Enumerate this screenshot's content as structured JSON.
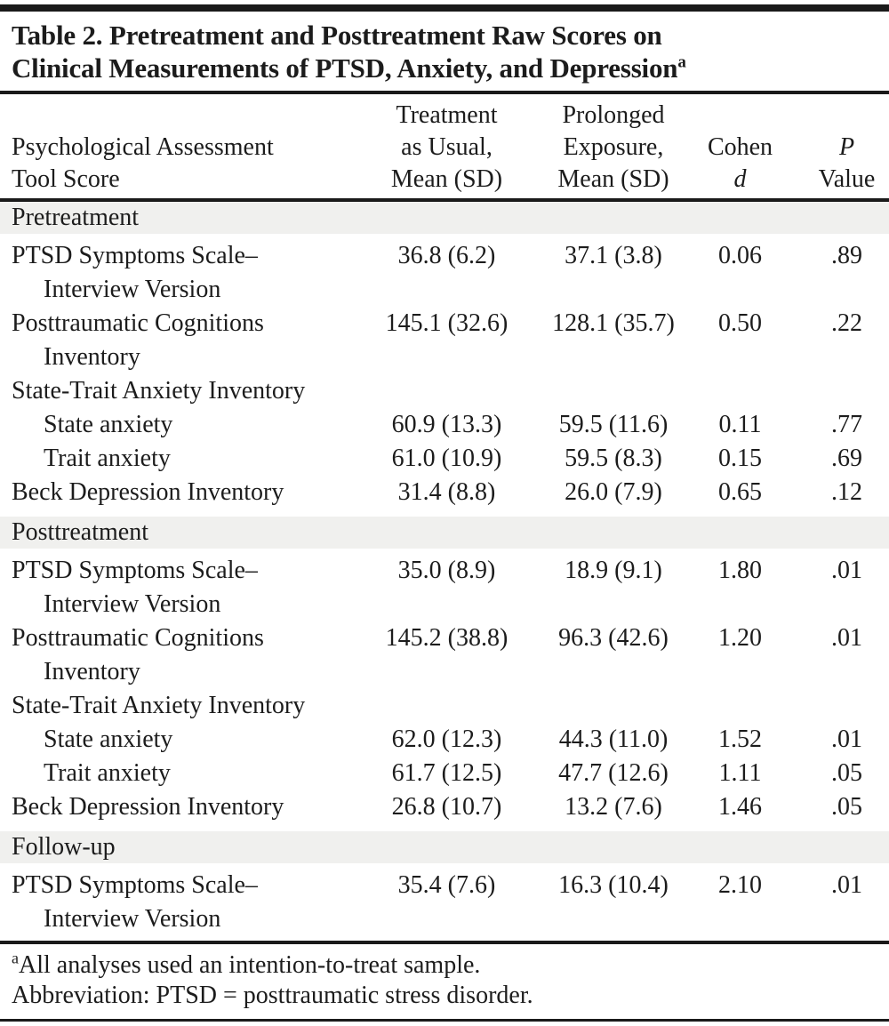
{
  "page": {
    "title_lines": [
      "Table 2. Pretreatment and Posttreatment Raw Scores on",
      "Clinical Measurements of PTSD, Anxiety, and Depression"
    ],
    "title_sup": "a"
  },
  "header": {
    "tool": [
      "Psychological Assessment",
      "Tool Score"
    ],
    "tau": [
      "Treatment",
      "as Usual,",
      "Mean (SD)"
    ],
    "pe": [
      "Prolonged",
      "Exposure,",
      "Mean (SD)"
    ],
    "cohen": [
      "Cohen",
      "d"
    ],
    "p": [
      "P",
      "Value"
    ]
  },
  "sections": [
    {
      "label": "Pretreatment",
      "rows": [
        {
          "label": "PTSD Symptoms Scale–",
          "label2": "Interview Version",
          "tau": "36.8 (6.2)",
          "pe": "37.1 (3.8)",
          "d": "0.06",
          "p": ".89"
        },
        {
          "label": "Posttraumatic Cognitions",
          "label2": "Inventory",
          "tau": "145.1 (32.6)",
          "pe": "128.1 (35.7)",
          "d": "0.50",
          "p": ".22"
        },
        {
          "label": "State-Trait Anxiety Inventory"
        },
        {
          "label": "State anxiety",
          "tau": "60.9 (13.3)",
          "pe": "59.5 (11.6)",
          "d": "0.11",
          "p": ".77"
        },
        {
          "label": "Trait anxiety",
          "tau": "61.0 (10.9)",
          "pe": "59.5 (8.3)",
          "d": "0.15",
          "p": ".69"
        },
        {
          "label": "Beck Depression Inventory",
          "tau": "31.4 (8.8)",
          "pe": "26.0 (7.9)",
          "d": "0.65",
          "p": ".12"
        }
      ]
    },
    {
      "label": "Posttreatment",
      "rows": [
        {
          "label": "PTSD Symptoms Scale–",
          "label2": "Interview Version",
          "tau": "35.0 (8.9)",
          "pe": "18.9 (9.1)",
          "d": "1.80",
          "p": ".01"
        },
        {
          "label": "Posttraumatic Cognitions",
          "label2": "Inventory",
          "tau": "145.2 (38.8)",
          "pe": "96.3 (42.6)",
          "d": "1.20",
          "p": ".01"
        },
        {
          "label": "State-Trait Anxiety Inventory"
        },
        {
          "label": "State anxiety",
          "tau": "62.0 (12.3)",
          "pe": "44.3 (11.0)",
          "d": "1.52",
          "p": ".01"
        },
        {
          "label": "Trait anxiety",
          "tau": "61.7 (12.5)",
          "pe": "47.7 (12.6)",
          "d": "1.11",
          "p": ".05"
        },
        {
          "label": "Beck Depression Inventory",
          "tau": "26.8 (10.7)",
          "pe": "13.2 (7.6)",
          "d": "1.46",
          "p": ".05"
        }
      ]
    },
    {
      "label": "Follow-up",
      "rows": [
        {
          "label": "PTSD Symptoms Scale–",
          "label2": "Interview Version",
          "tau": "35.4 (7.6)",
          "pe": "16.3 (10.4)",
          "d": "2.10",
          "p": ".01"
        }
      ]
    }
  ],
  "footnotes": [
    {
      "sup": "a",
      "text": "All analyses used an intention-to-treat sample."
    },
    {
      "text": "Abbreviation: PTSD = posttraumatic stress disorder."
    }
  ]
}
